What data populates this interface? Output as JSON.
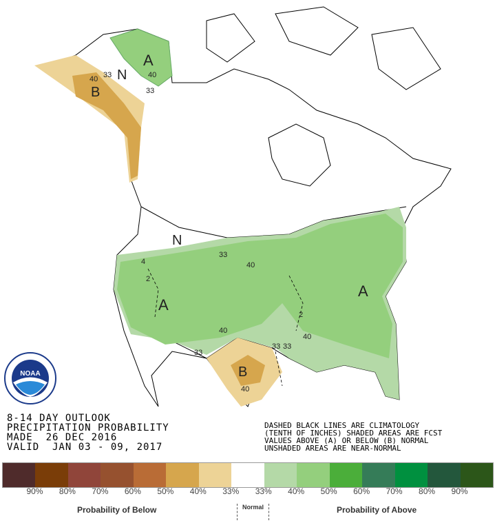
{
  "title_block": {
    "line1": "8-14 DAY OUTLOOK",
    "line2": "PRECIPITATION PROBABILITY",
    "line3": "MADE  26 DEC 2016",
    "line4": "VALID  JAN 03 - 09, 2017"
  },
  "note_block": {
    "line1": "DASHED BLACK LINES ARE CLIMATOLOGY",
    "line2": "(TENTH OF INCHES) SHADED AREAS ARE FCST",
    "line3": "VALUES ABOVE (A) OR BELOW (B) NORMAL",
    "line4": "UNSHADED AREAS ARE NEAR-NORMAL"
  },
  "logo": {
    "text": "NOAA",
    "ring_text": "NATIONAL OCEANIC AND ATMOSPHERIC ADMINISTRATION - U.S. DEPARTMENT OF COMMERCE"
  },
  "map_labels": {
    "A1": "A",
    "A2": "A",
    "A3": "A",
    "B1": "B",
    "B2": "B",
    "N1": "N",
    "N2": "N",
    "c33a": "33",
    "c40a": "40",
    "c33b": "33",
    "c40b": "40",
    "c33c": "33",
    "c40c": "40",
    "c33d": "33",
    "c40d": "40",
    "c33e": "33",
    "c33f": "33",
    "c40e": "40",
    "c40f": "40",
    "c2a": "2",
    "c2b": "2",
    "c4a": "4"
  },
  "legend": {
    "colors": [
      "#4f2b2b",
      "#7a3d08",
      "#90453a",
      "#96512f",
      "#b96c36",
      "#d6a64d",
      "#edd396",
      "#ffffff",
      "#b4d9a7",
      "#94cf7d",
      "#4bae3a",
      "#357c58",
      "#00903f",
      "#23573c",
      "#2c5619"
    ],
    "percent_labels": [
      "90%",
      "80%",
      "70%",
      "60%",
      "50%",
      "40%",
      "33%",
      "33%",
      "40%",
      "50%",
      "60%",
      "70%",
      "80%",
      "90%"
    ],
    "below_label": "Probability of Below",
    "normal_label": "Normal",
    "above_label": "Probability of Above"
  }
}
